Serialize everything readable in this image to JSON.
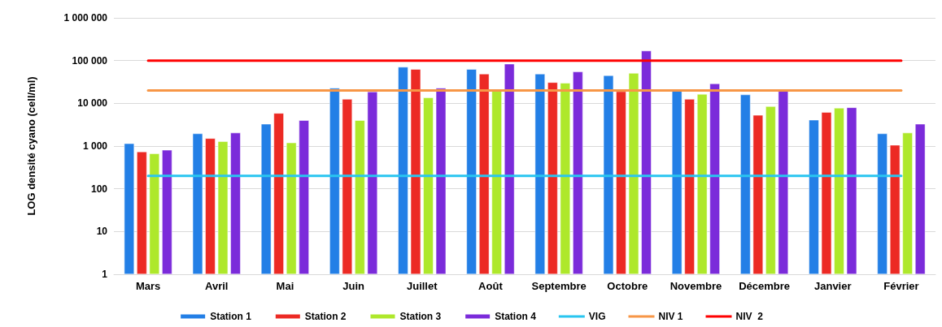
{
  "chart_data": {
    "type": "bar",
    "ylabel": "LOG densité cyano (cell/ml)",
    "log": "y",
    "grid": "y",
    "legend": "bottom",
    "marker": "none",
    "categories": [
      "Mars",
      "Avril",
      "Mai",
      "Juin",
      "Juillet",
      "Août",
      "Septembre",
      "Octobre",
      "Novembre",
      "Décembre",
      "Janvier",
      "Février"
    ],
    "ylim": [
      1,
      1000000
    ],
    "yticks": [
      1,
      10,
      100,
      {
        "value": 1000,
        "label": "1 000"
      },
      {
        "value": 10000,
        "label": "10 000"
      },
      {
        "value": 100000,
        "label": "100 000"
      },
      {
        "value": 1000000,
        "label": "1 000 000"
      }
    ],
    "series": [
      {
        "name": "Station 1",
        "color": "#237fe6",
        "values": [
          1150,
          1960,
          3300,
          22800,
          71000,
          63000,
          49000,
          45000,
          21500,
          16000,
          4100,
          1960
        ]
      },
      {
        "name": "Station 2",
        "color": "#ec2a24",
        "values": [
          740,
          1520,
          5900,
          12600,
          63000,
          49000,
          31000,
          19000,
          12600,
          5300,
          6200,
          1060
        ]
      },
      {
        "name": "Station 3",
        "color": "#aee82b",
        "values": [
          670,
          1290,
          1200,
          4000,
          13600,
          19300,
          30000,
          51000,
          16500,
          8500,
          7800,
          2050
        ]
      },
      {
        "name": "Station 4",
        "color": "#7b2bda",
        "values": [
          810,
          2050,
          4000,
          18700,
          22800,
          84000,
          55000,
          170000,
          29000,
          19300,
          8000,
          3300
        ]
      },
      {
        "name": "VIG",
        "type": "line",
        "color": "#29c5f0",
        "values": [
          200,
          200,
          200,
          200,
          200,
          200,
          200,
          200,
          200,
          200,
          200,
          200
        ]
      },
      {
        "name": "NIV 1",
        "type": "line",
        "color": "#f79646",
        "values": [
          20000,
          20000,
          20000,
          20000,
          20000,
          20000,
          20000,
          20000,
          20000,
          20000,
          20000,
          20000
        ]
      },
      {
        "name": "NIV  2",
        "type": "line",
        "color": "#ff0000",
        "values": [
          100000,
          100000,
          100000,
          100000,
          100000,
          100000,
          100000,
          100000,
          100000,
          100000,
          100000,
          100000
        ]
      }
    ]
  }
}
